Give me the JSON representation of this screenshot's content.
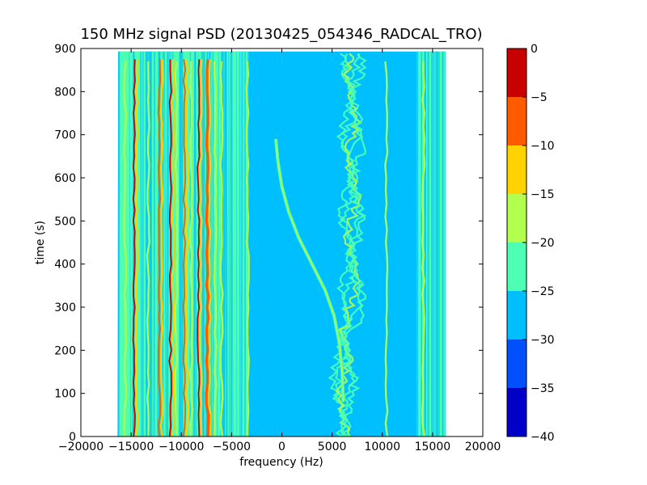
{
  "chart_data": {
    "type": "heatmap",
    "title": "150 MHz signal PSD (20130425_054346_RADCAL_TRO)",
    "xlabel": "frequency (Hz)",
    "ylabel": "time (s)",
    "xlim": [
      -20000,
      20000
    ],
    "ylim": [
      0,
      900
    ],
    "data_extent": {
      "x": [
        -16300,
        16300
      ],
      "y": [
        0,
        893
      ]
    },
    "xticks": [
      -20000,
      -15000,
      -10000,
      -5000,
      0,
      5000,
      10000,
      15000,
      20000
    ],
    "yticks": [
      0,
      100,
      200,
      300,
      400,
      500,
      600,
      700,
      800,
      900
    ],
    "colorbar": {
      "levels": [
        -40,
        -35,
        -30,
        -25,
        -20,
        -15,
        -10,
        -5,
        0
      ],
      "tick_labels": [
        "−40",
        "−35",
        "−30",
        "−25",
        "−20",
        "−15",
        "−10",
        "−5",
        "0"
      ],
      "colors": [
        "#0000c8",
        "#0050ff",
        "#00bfff",
        "#4dffb2",
        "#b2ff4d",
        "#ffd200",
        "#ff5a00",
        "#c80000"
      ]
    },
    "grid": false,
    "features": {
      "background_level_band": [
        -30,
        -25
      ],
      "outer_level_band": [
        -25,
        -20
      ],
      "strong_lines_hz": [
        -14700,
        -12200,
        -11100,
        -9700,
        -8300,
        -7400
      ],
      "medium_lines_hz": [
        -15600,
        -13300,
        -10500,
        -9000,
        -6600,
        -6000,
        -3400,
        10400,
        14100
      ],
      "drifting_tone": [
        {
          "time": 690,
          "freq": -600
        },
        {
          "time": 640,
          "freq": -400
        },
        {
          "time": 580,
          "freq": 0
        },
        {
          "time": 520,
          "freq": 700
        },
        {
          "time": 460,
          "freq": 1700
        },
        {
          "time": 400,
          "freq": 3000
        },
        {
          "time": 340,
          "freq": 4300
        },
        {
          "time": 280,
          "freq": 5200
        },
        {
          "time": 220,
          "freq": 5700
        },
        {
          "time": 150,
          "freq": 6000
        },
        {
          "time": 80,
          "freq": 6100
        }
      ],
      "wandering_band_center_hz": 7000
    }
  }
}
